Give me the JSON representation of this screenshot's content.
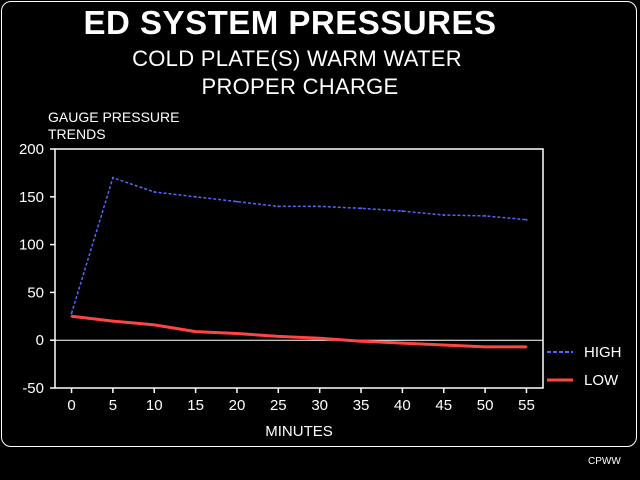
{
  "chart_data": {
    "type": "line",
    "title": "ED SYSTEM PRESSURES",
    "subtitle": [
      "COLD PLATE(S) WARM WATER",
      "PROPER CHARGE"
    ],
    "ylabel": [
      "GAUGE PRESSURE",
      "TRENDS"
    ],
    "xlabel": "MINUTES",
    "xlim": [
      -2,
      57
    ],
    "ylim": [
      -50,
      200
    ],
    "xticks": [
      0,
      5,
      10,
      15,
      20,
      25,
      30,
      35,
      40,
      45,
      50,
      55
    ],
    "yticks": [
      -50,
      0,
      50,
      100,
      150,
      200
    ],
    "x": [
      0,
      5,
      10,
      15,
      20,
      25,
      30,
      35,
      40,
      45,
      50,
      55
    ],
    "series": [
      {
        "name": "HIGH",
        "color": "#5566ff",
        "style": "dashed",
        "values": [
          28,
          170,
          155,
          150,
          145,
          140,
          140,
          138,
          135,
          131,
          130,
          126
        ]
      },
      {
        "name": "LOW",
        "color": "#ff4444",
        "style": "solid",
        "values": [
          25,
          20,
          16,
          9,
          7,
          4,
          2,
          -1,
          -3,
          -5,
          -7,
          -7
        ]
      }
    ],
    "legend": "right",
    "zero_line": true
  },
  "footer_code": "CPWW"
}
